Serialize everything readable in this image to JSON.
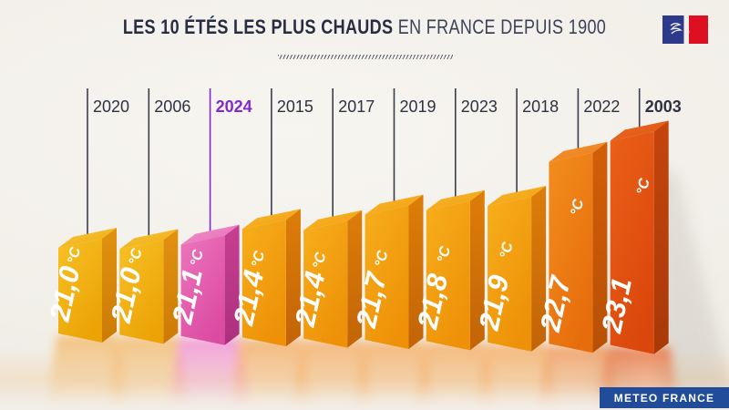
{
  "header": {
    "title_bold": "LES 10 ÉTÉS LES PLUS CHAUDS",
    "title_light": "EN FRANCE DEPUIS 1900",
    "title_color": "#272C42"
  },
  "logo": {
    "name": "republique-francaise-logo",
    "blue": "#2D3A8C",
    "red": "#DD1021"
  },
  "footer": {
    "brand_label": "METEO FRANCE",
    "brand_bg": "#214C99"
  },
  "chart_data": {
    "type": "bar",
    "title": "Les 10 étés les plus chauds en France depuis 1900",
    "unit": "°C",
    "categories": [
      "2020",
      "2006",
      "2024",
      "2015",
      "2017",
      "2019",
      "2023",
      "2018",
      "2022",
      "2003"
    ],
    "values": [
      21.0,
      21.0,
      21.1,
      21.4,
      21.4,
      21.7,
      21.8,
      21.9,
      22.7,
      23.1
    ],
    "value_labels": [
      "21,0",
      "21,0",
      "21,1",
      "21,4",
      "21,4",
      "21,7",
      "21,8",
      "21,9",
      "22,7",
      "23,1"
    ],
    "ylim": [
      20.8,
      23.3
    ],
    "legend": false,
    "grid": false,
    "highlight_index": 2,
    "bold_indices": [
      2,
      9
    ],
    "highlight_color": "#8229CF",
    "year_label_color": "#2E3240",
    "leader_line_color": "#3A3E4C",
    "value_text_color": "#FFFFFF",
    "styles": [
      "gold",
      "gold",
      "pink",
      "orange",
      "orange",
      "orange",
      "orange",
      "orange",
      "deep",
      "red"
    ],
    "palette": {
      "gold": {
        "top1": "#F7C437",
        "top2": "#EFAC12",
        "front1": "#F7C125",
        "front2": "#ECA306",
        "side1": "#E29210",
        "side2": "#CB7B04",
        "refl": "#F4B765"
      },
      "pink": {
        "top1": "#F093CC",
        "top2": "#E76CB6",
        "front1": "#EC76BD",
        "front2": "#DC4BA2",
        "side1": "#C83F92",
        "side2": "#AC307E",
        "refl": "#F48BD4"
      },
      "orange": {
        "top1": "#F8B62C",
        "top2": "#F2A011",
        "front1": "#F7AF1B",
        "front2": "#EE9108",
        "side1": "#DD7D09",
        "side2": "#C26407",
        "refl": "#F5A95A"
      },
      "deep": {
        "top1": "#F39432",
        "top2": "#EC7F18",
        "front1": "#F28E1E",
        "front2": "#E76D0C",
        "side1": "#D25E08",
        "side2": "#B85005",
        "refl": "#F19350"
      },
      "red": {
        "top1": "#EA6B24",
        "top2": "#E05413",
        "front1": "#EB6118",
        "front2": "#DA470C",
        "side1": "#C4450C",
        "side2": "#A93908",
        "refl": "#EB6B34"
      }
    }
  }
}
